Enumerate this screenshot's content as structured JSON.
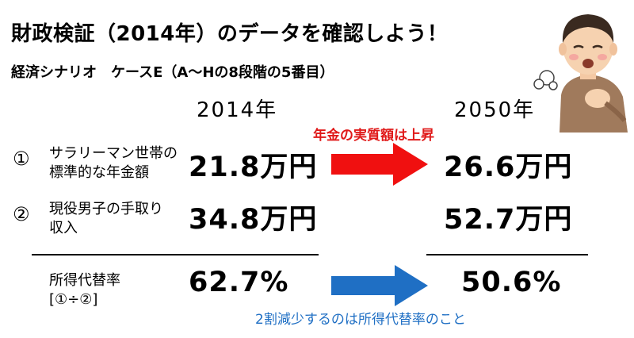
{
  "title": "財政検証（2014年）のデータを確認しよう！",
  "subtitle": "経済シナリオ　ケースE（A～Hの8段階の5番目）",
  "years": {
    "from": "2014年",
    "to": "2050年"
  },
  "notes": {
    "pension_rise": "年金の実質額は上昇",
    "ratio_drop": "2割減少するのは所得代替率のこと"
  },
  "rows": [
    {
      "num": "①",
      "label_line1": "サラリーマン世帯の",
      "label_line2": "標準的な年金額",
      "v2014": "21.8万円",
      "v2050": "26.6万円"
    },
    {
      "num": "②",
      "label_line1": "現役男子の手取り",
      "label_line2": "収入",
      "v2014": "34.8万円",
      "v2050": "52.7万円"
    }
  ],
  "ratio": {
    "label_line1": "所得代替率",
    "label_line2": "[①÷②]",
    "v2014": "62.7%",
    "v2050": "50.6%"
  },
  "colors": {
    "red_arrow": "#f01010",
    "blue_arrow": "#1f6fc4"
  },
  "illustration": "sick-man-holding-chest"
}
